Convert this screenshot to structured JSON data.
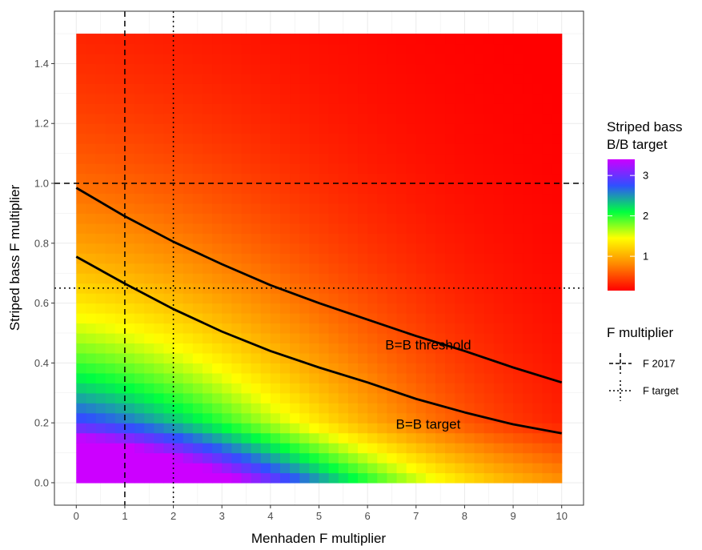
{
  "chart_data": {
    "type": "heatmap",
    "xlabel": "Menhaden F multiplier",
    "ylabel": "Striped bass F multiplier",
    "xlim": [
      -0.45,
      10.45
    ],
    "ylim": [
      -0.075,
      1.575
    ],
    "x_ticks": [
      0,
      1,
      2,
      3,
      4,
      5,
      6,
      7,
      8,
      9,
      10
    ],
    "x_tick_labels": [
      "0",
      "1",
      "2",
      "3",
      "4",
      "5",
      "6",
      "7",
      "8",
      "9",
      "10"
    ],
    "y_ticks": [
      0.0,
      0.2,
      0.4,
      0.6,
      0.8,
      1.0,
      1.2,
      1.4
    ],
    "y_tick_labels": [
      "0.0",
      "0.2",
      "0.4",
      "0.6",
      "0.8",
      "1.0",
      "1.2",
      "1.4"
    ],
    "grid": true,
    "heatmap": {
      "x_range": [
        0,
        10
      ],
      "y_range": [
        0,
        1.5
      ],
      "fill_legend": {
        "title": [
          "Striped bass",
          "B/B target"
        ],
        "ticks": [
          1,
          2,
          3
        ],
        "tick_labels": [
          "1",
          "2",
          "3"
        ],
        "range": [
          0.15,
          3.4
        ],
        "colors": [
          "#ff0000",
          "#ff8800",
          "#ffff00",
          "#00ff40",
          "#3050ff",
          "#cc00ff"
        ]
      }
    },
    "contour_lines": [
      {
        "label": "B=B threshold",
        "x": [
          0,
          1,
          2,
          3,
          4,
          5,
          6,
          7,
          8,
          9,
          10
        ],
        "y": [
          0.985,
          0.89,
          0.805,
          0.73,
          0.66,
          0.6,
          0.545,
          0.49,
          0.44,
          0.385,
          0.335
        ]
      },
      {
        "label": "B=B target",
        "x": [
          0,
          1,
          2,
          3,
          4,
          5,
          6,
          7,
          8,
          9,
          10
        ],
        "y": [
          0.755,
          0.665,
          0.58,
          0.505,
          0.44,
          0.385,
          0.335,
          0.28,
          0.235,
          0.195,
          0.165
        ]
      }
    ],
    "reference_lines": {
      "legend_title": "F multiplier",
      "items": [
        {
          "name": "F 2017",
          "style": "dashed",
          "x": 1,
          "y": 1.0
        },
        {
          "name": "F target",
          "style": "dotted",
          "x": 2,
          "y": 0.65
        }
      ]
    }
  }
}
